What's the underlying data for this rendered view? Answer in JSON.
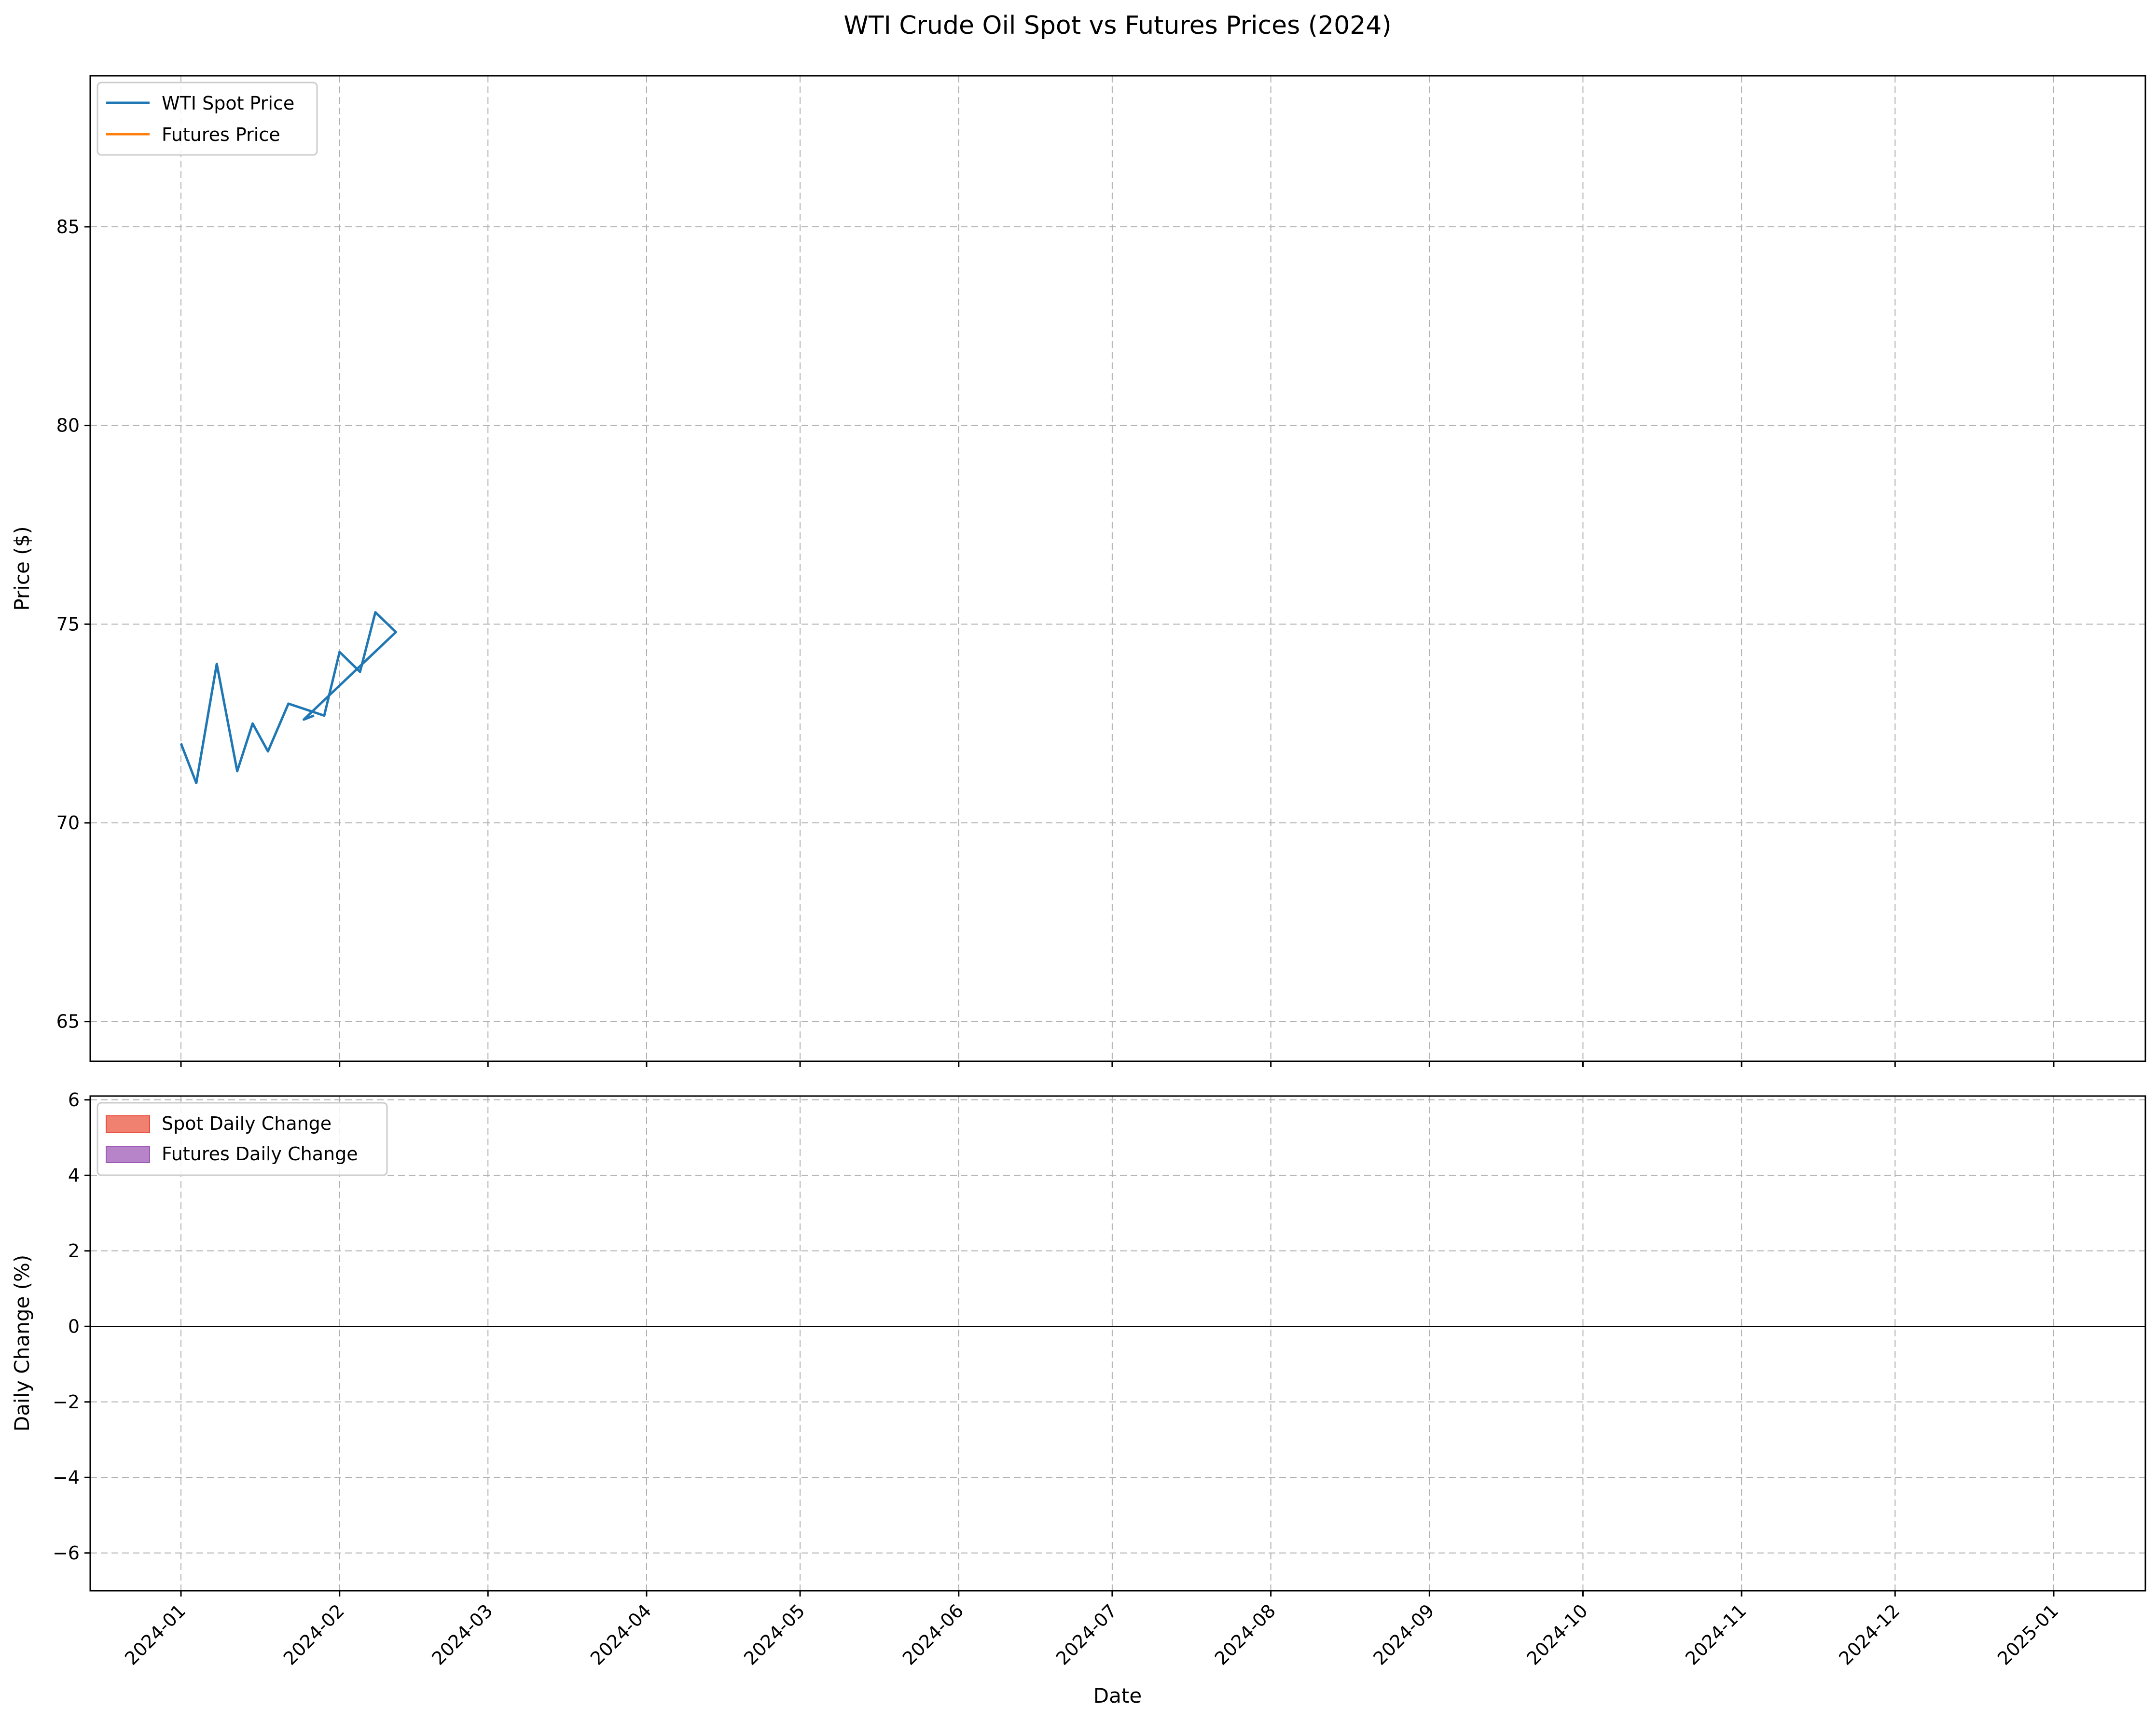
{
  "chart_data": {
    "title": "WTI Crude Oil Spot vs Futures Prices (2024)",
    "xlabel": "Date",
    "x_ticks": [
      "2024-01",
      "2024-02",
      "2024-03",
      "2024-04",
      "2024-05",
      "2024-06",
      "2024-07",
      "2024-08",
      "2024-09",
      "2024-10",
      "2024-11",
      "2024-12",
      "2025-01"
    ],
    "grid": true,
    "panels": [
      {
        "type": "line",
        "ylabel": "Price ($)",
        "ylim": [
          64,
          88.8
        ],
        "yticks": [
          65,
          70,
          75,
          80,
          85
        ],
        "legend_position": "top-left",
        "series": [
          {
            "name": "WTI Spot Price",
            "color": "#1f77b4",
            "points": [
              [
                "2024-01-01",
                72.0
              ],
              [
                "2024-01-04",
                71.0
              ],
              [
                "2024-01-08",
                74.0
              ],
              [
                "2024-01-12",
                71.3
              ],
              [
                "2024-01-15",
                72.5
              ],
              [
                "2024-01-18",
                71.8
              ],
              [
                "2024-01-22",
                73.0
              ],
              [
                "2024-01-29",
                72.7
              ],
              [
                "2024-02-01",
                74.3
              ],
              [
                "2024-02-05",
                73.8
              ],
              [
                "2024-02-08",
                75.3
              ],
              [
                "2024-02-12",
                74.8
              ],
              [
                "2024-01-25",
                72.6
              ],
              [
                "2024-01-27",
                72.7
              ]
            ]
          },
          {
            "name": "Futures Price",
            "color": "#ff7f0e",
            "points": []
          }
        ]
      },
      {
        "type": "bar",
        "ylabel": "Daily Change (%)",
        "ylim": [
          -7,
          6.1
        ],
        "yticks": [
          -6,
          -4,
          -2,
          0,
          2,
          4,
          6
        ],
        "legend_position": "top-left",
        "positive_colors": [
          "#2ecc71",
          "#3498db"
        ],
        "negative_colors": [
          "#e74c3c",
          "#9b59b6"
        ],
        "series": [
          {
            "name": "Spot Daily Change",
            "legend_color": "#f08070"
          },
          {
            "name": "Futures Daily Change",
            "legend_color": "#b784c9"
          }
        ],
        "dates": [],
        "spot_change": [],
        "futures_change": []
      }
    ]
  }
}
